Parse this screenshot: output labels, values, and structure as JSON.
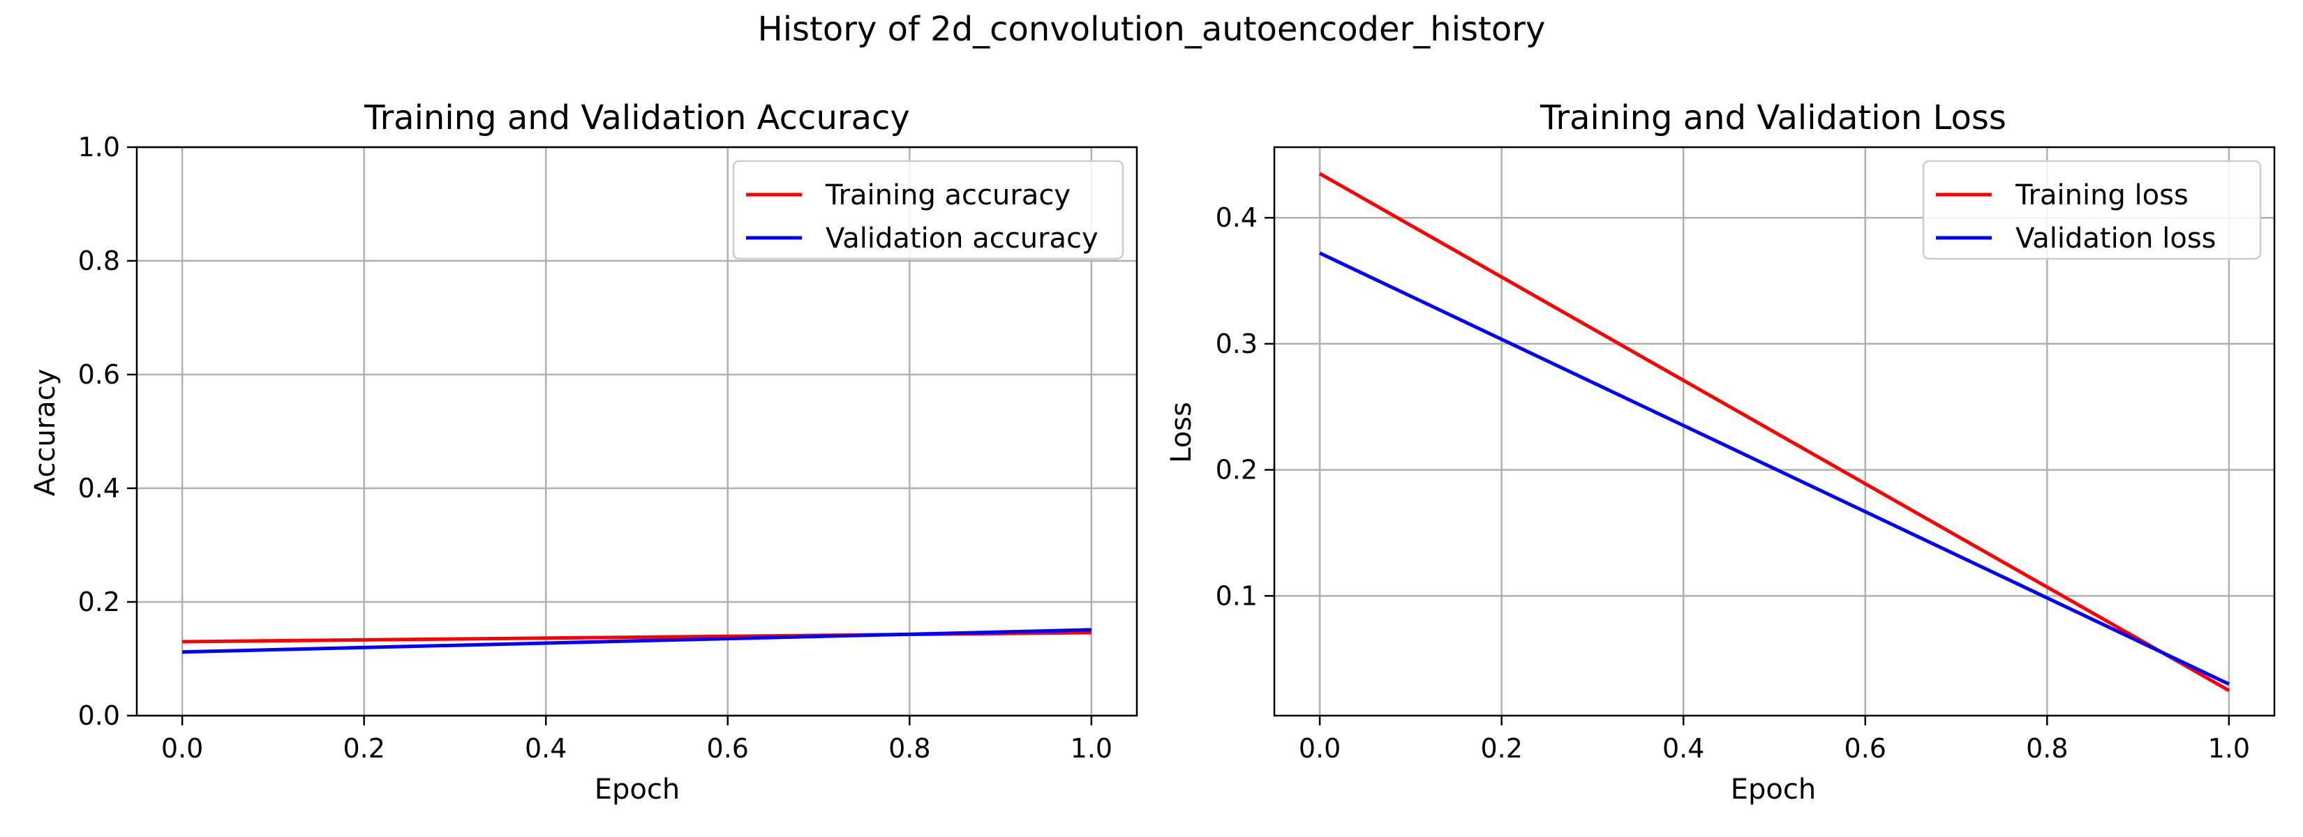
{
  "figure": {
    "suptitle": "History of 2d_convolution_autoencoder_history"
  },
  "chart_data": [
    {
      "type": "line",
      "title": "Training and Validation Accuracy",
      "xlabel": "Epoch",
      "ylabel": "Accuracy",
      "xlim": [
        -0.05,
        1.05
      ],
      "ylim": [
        0.0,
        1.0
      ],
      "x_ticks": [
        0.0,
        0.2,
        0.4,
        0.6,
        0.8,
        1.0
      ],
      "x_tick_labels": [
        "0.0",
        "0.2",
        "0.4",
        "0.6",
        "0.8",
        "1.0"
      ],
      "y_ticks": [
        0.0,
        0.2,
        0.4,
        0.6,
        0.8,
        1.0
      ],
      "y_tick_labels": [
        "0.0",
        "0.2",
        "0.4",
        "0.6",
        "0.8",
        "1.0"
      ],
      "grid": true,
      "legend_position": "top-right",
      "x": [
        0,
        1
      ],
      "series": [
        {
          "name": "Training accuracy",
          "color": "#ff0000",
          "values": [
            0.13,
            0.146
          ]
        },
        {
          "name": "Validation accuracy",
          "color": "#0000ff",
          "values": [
            0.112,
            0.151
          ]
        }
      ]
    },
    {
      "type": "line",
      "title": "Training and Validation Loss",
      "xlabel": "Epoch",
      "ylabel": "Loss",
      "xlim": [
        -0.05,
        1.05
      ],
      "ylim": [
        0.005,
        0.456
      ],
      "x_ticks": [
        0.0,
        0.2,
        0.4,
        0.6,
        0.8,
        1.0
      ],
      "x_tick_labels": [
        "0.0",
        "0.2",
        "0.4",
        "0.6",
        "0.8",
        "1.0"
      ],
      "y_ticks": [
        0.1,
        0.2,
        0.3,
        0.4
      ],
      "y_tick_labels": [
        "0.1",
        "0.2",
        "0.3",
        "0.4"
      ],
      "grid": true,
      "legend_position": "top-right",
      "x": [
        0,
        1
      ],
      "series": [
        {
          "name": "Training loss",
          "color": "#ff0000",
          "values": [
            0.435,
            0.025
          ]
        },
        {
          "name": "Validation loss",
          "color": "#0000ff",
          "values": [
            0.372,
            0.03
          ]
        }
      ]
    }
  ]
}
